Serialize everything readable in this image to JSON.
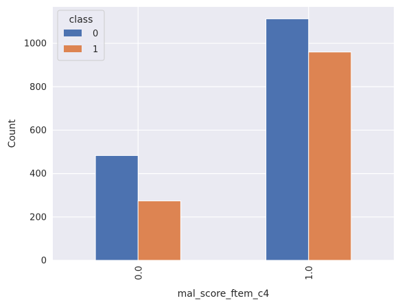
{
  "chart_data": {
    "type": "bar",
    "categories": [
      "0.0",
      "1.0"
    ],
    "series": [
      {
        "name": "0",
        "values": [
          483,
          1113
        ],
        "color": "#4c72b0"
      },
      {
        "name": "1",
        "values": [
          274,
          960
        ],
        "color": "#dd8452"
      }
    ],
    "xlabel": "mal_score_ftem_c4",
    "ylabel": "Count",
    "ylim": [
      0,
      1168
    ],
    "yticks": [
      0,
      200,
      400,
      600,
      800,
      1000
    ],
    "legend": {
      "title": "class",
      "placement": "top-left"
    },
    "grid": true,
    "background_color": "#eaeaf2"
  }
}
